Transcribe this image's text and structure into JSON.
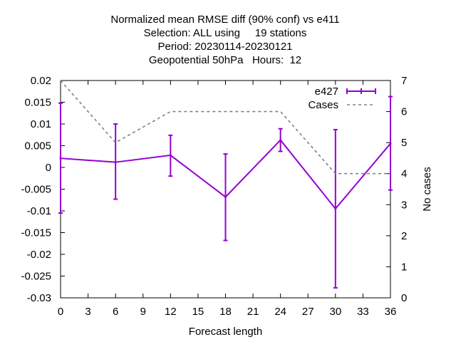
{
  "chart_data": {
    "type": "line",
    "title_lines": [
      "Normalized mean RMSE diff (90% conf) vs e411",
      "Selection: ALL using     19 stations",
      "Period: 20230114-20230121",
      "Geopotential 50hPa   Hours:  12"
    ],
    "xlabel": "Forecast length",
    "ylabel": "",
    "y2label": "No cases",
    "xlim": [
      0,
      36
    ],
    "ylim": [
      -0.03,
      0.02
    ],
    "y2lim": [
      0,
      7
    ],
    "x_ticks": [
      0,
      3,
      6,
      9,
      12,
      15,
      18,
      21,
      24,
      27,
      30,
      33,
      36
    ],
    "y_ticks": [
      {
        "value": 0.02,
        "label": "0.02"
      },
      {
        "value": 0.015,
        "label": "0.015"
      },
      {
        "value": 0.01,
        "label": "0.01"
      },
      {
        "value": 0.005,
        "label": "0.005"
      },
      {
        "value": 0,
        "label": "0"
      },
      {
        "value": -0.005,
        "label": "-0.005"
      },
      {
        "value": -0.01,
        "label": "-0.01"
      },
      {
        "value": -0.015,
        "label": "-0.015"
      },
      {
        "value": -0.02,
        "label": "-0.02"
      },
      {
        "value": -0.025,
        "label": "-0.025"
      },
      {
        "value": -0.03,
        "label": "-0.03"
      }
    ],
    "y2_ticks": [
      0,
      1,
      2,
      3,
      4,
      5,
      6,
      7
    ],
    "grid": false,
    "legend_position": "top-right",
    "series": [
      {
        "name": "e427",
        "axis": "y",
        "style": "errorbars-line",
        "color": "#9400d3",
        "points": [
          {
            "x": 0,
            "y": 0.0021,
            "low": -0.0105,
            "high": 0.0148
          },
          {
            "x": 6,
            "y": 0.0012,
            "low": -0.0073,
            "high": 0.01
          },
          {
            "x": 12,
            "y": 0.0028,
            "low": -0.002,
            "high": 0.0074
          },
          {
            "x": 18,
            "y": -0.0068,
            "low": -0.0168,
            "high": 0.0031
          },
          {
            "x": 24,
            "y": 0.0063,
            "low": 0.0037,
            "high": 0.0089
          },
          {
            "x": 30,
            "y": -0.0095,
            "low": -0.0277,
            "high": 0.0087
          },
          {
            "x": 36,
            "y": 0.0055,
            "low": -0.0052,
            "high": 0.0163
          }
        ]
      },
      {
        "name": "Cases",
        "axis": "y2",
        "style": "dashed-line",
        "color": "#808080",
        "points": [
          {
            "x": 0,
            "y": 7
          },
          {
            "x": 6,
            "y": 5
          },
          {
            "x": 12,
            "y": 6
          },
          {
            "x": 24,
            "y": 6
          },
          {
            "x": 30,
            "y": 4
          },
          {
            "x": 36,
            "y": 4
          }
        ]
      }
    ]
  }
}
